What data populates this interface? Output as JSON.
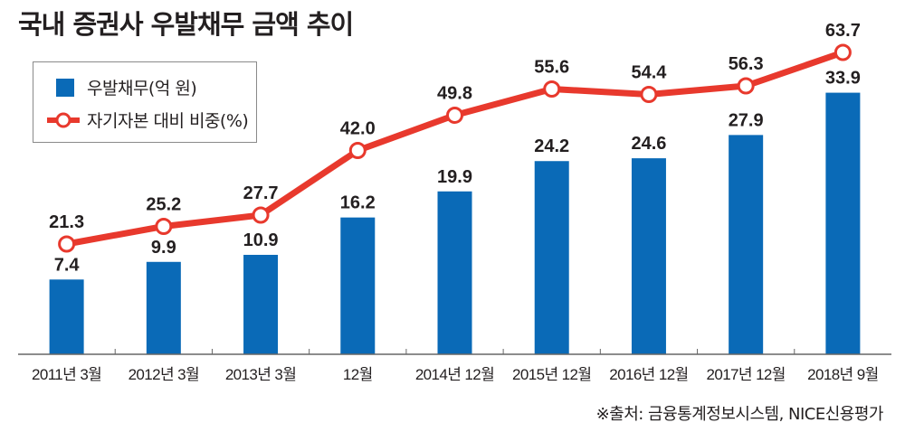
{
  "title": "국내 증권사 우발채무 금액 추이",
  "legend": {
    "bar_label": "우발채무(억 원)",
    "line_label": "자기자본 대비 비중(%)"
  },
  "source": "※출처: 금융통계정보시스템, NICE신용평가",
  "colors": {
    "bar": "#0a6ab7",
    "line": "#e8392d",
    "text": "#231f20",
    "axis": "#666666"
  },
  "chart_data": {
    "type": "bar+line",
    "title": "국내 증권사 우발채무 금액 추이",
    "categories": [
      "2011년 3월",
      "2012년 3월",
      "2013년 3월",
      "12월",
      "2014년 12월",
      "2015년 12월",
      "2016년 12월",
      "2017년 12월",
      "2018년 9월"
    ],
    "series": [
      {
        "name": "우발채무(억 원)",
        "type": "bar",
        "values": [
          7.4,
          9.9,
          10.9,
          16.2,
          19.9,
          24.2,
          24.6,
          27.9,
          33.9
        ],
        "labels": [
          "7.4",
          "9.9",
          "10.9",
          "16.2",
          "19.9",
          "24.2",
          "24.6",
          "27.9",
          "33.9"
        ]
      },
      {
        "name": "자기자본 대비 비중(%)",
        "type": "line",
        "values": [
          21.3,
          25.2,
          27.7,
          42.0,
          49.8,
          55.6,
          54.4,
          56.3,
          63.7
        ],
        "labels": [
          "21.3",
          "25.2",
          "27.7",
          "42.0",
          "49.8",
          "55.6",
          "54.4",
          "56.3",
          "63.7"
        ]
      }
    ],
    "xlabel": "",
    "ylabel": "",
    "grid": false,
    "legend": "top-left"
  }
}
